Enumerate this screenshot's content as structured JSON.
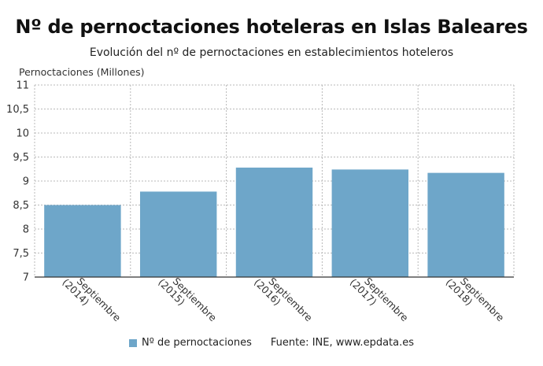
{
  "chart_data": {
    "type": "bar",
    "title": "Nº de pernoctaciones hoteleras en Islas Baleares",
    "subtitle": "Evolución del nº de pernoctaciones en establecimientos hoteleros",
    "ylabel": "Pernoctaciones (Millones)",
    "xlabel": "",
    "categories": [
      [
        "Septiembre",
        "(2014)"
      ],
      [
        "Septiembre",
        "(2015)"
      ],
      [
        "Septiembre",
        "(2016)"
      ],
      [
        "Septiembre",
        "(2017)"
      ],
      [
        "Septiembre",
        "(2018)"
      ]
    ],
    "series": [
      {
        "name": "Nº de pernoctaciones",
        "values": [
          8.5,
          8.78,
          9.28,
          9.24,
          9.17
        ],
        "color": "#6ea6c9"
      }
    ],
    "ylim": [
      7,
      11
    ],
    "yticks": [
      "7",
      "7,5",
      "8",
      "8,5",
      "9",
      "9,5",
      "10",
      "10,5",
      "11"
    ],
    "grid": true,
    "legend_position": "bottom"
  },
  "source": "Fuente: INE, www.epdata.es"
}
